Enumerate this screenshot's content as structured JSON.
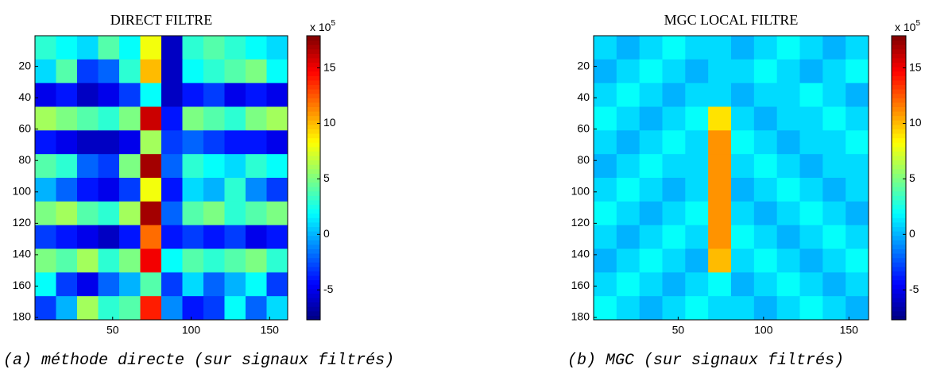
{
  "chart_data": [
    {
      "type": "heatmap",
      "title": "DIRECT FILTRE",
      "caption": "(a) méthode directe (sur signaux filtrés)",
      "xlim": [
        0.5,
        161.5
      ],
      "ylim": [
        0.5,
        181.5
      ],
      "xticks": [
        50,
        100,
        150
      ],
      "yticks": [
        20,
        40,
        60,
        80,
        100,
        120,
        140,
        160,
        180
      ],
      "clim": [
        -7.7,
        17.9
      ],
      "cticks": [
        -5,
        0,
        5,
        10,
        15
      ],
      "colorbar_label": "x 10",
      "colorbar_exponent": "5",
      "colormap": "jet",
      "z": [
        [
          3,
          2,
          1,
          4,
          2,
          8,
          -6,
          3,
          4,
          3,
          2,
          1
        ],
        [
          1,
          4,
          -3,
          -2,
          3,
          10,
          -6,
          2,
          3,
          4,
          5,
          2
        ],
        [
          -5,
          -4,
          -6,
          -5,
          -3,
          2,
          -6,
          -4,
          -3,
          -5,
          -4,
          -5
        ],
        [
          6,
          5,
          4,
          3,
          5,
          16,
          -4,
          5,
          4,
          3,
          5,
          6
        ],
        [
          -4,
          -5,
          -6,
          -6,
          -5,
          6,
          -3,
          -2,
          -3,
          -4,
          -4,
          -5
        ],
        [
          4,
          3,
          -2,
          -3,
          5,
          17,
          -2,
          3,
          2,
          1,
          3,
          2
        ],
        [
          0,
          -2,
          -4,
          -5,
          -3,
          8,
          -4,
          1,
          0,
          3,
          -1,
          -3
        ],
        [
          5,
          6,
          4,
          3,
          6,
          17,
          -2,
          4,
          5,
          3,
          4,
          5
        ],
        [
          -3,
          -4,
          -5,
          -6,
          -4,
          12,
          -4,
          -3,
          -4,
          -3,
          -5,
          -4
        ],
        [
          5,
          4,
          6,
          3,
          5,
          15,
          2,
          4,
          3,
          4,
          5,
          3
        ],
        [
          2,
          -3,
          -5,
          -2,
          0,
          4,
          -3,
          1,
          -2,
          0,
          2,
          -3
        ],
        [
          -3,
          0,
          6,
          3,
          4,
          14,
          -1,
          -4,
          -3,
          2,
          -2,
          1
        ]
      ]
    },
    {
      "type": "heatmap",
      "title": "MGC LOCAL FILTRE",
      "caption": "(b) MGC (sur signaux filtrés)",
      "xlim": [
        0.5,
        161.5
      ],
      "ylim": [
        0.5,
        181.5
      ],
      "xticks": [
        50,
        100,
        150
      ],
      "yticks": [
        20,
        40,
        60,
        80,
        100,
        120,
        140,
        160,
        180
      ],
      "clim": [
        -7.7,
        17.9
      ],
      "cticks": [
        -5,
        0,
        5,
        10,
        15
      ],
      "colorbar_label": "x 10",
      "colorbar_exponent": "5",
      "colormap": "jet",
      "z": [
        [
          1,
          0,
          1,
          2,
          1,
          1,
          0,
          1,
          2,
          1,
          0,
          1
        ],
        [
          0,
          1,
          2,
          1,
          0,
          1,
          1,
          2,
          1,
          0,
          1,
          2
        ],
        [
          1,
          2,
          1,
          0,
          1,
          1,
          0,
          1,
          1,
          2,
          1,
          0
        ],
        [
          2,
          1,
          0,
          1,
          2,
          9,
          1,
          0,
          1,
          1,
          2,
          1
        ],
        [
          1,
          0,
          1,
          2,
          1,
          11,
          2,
          1,
          0,
          1,
          1,
          2
        ],
        [
          0,
          1,
          2,
          1,
          1,
          11,
          1,
          2,
          1,
          0,
          1,
          1
        ],
        [
          1,
          2,
          1,
          0,
          1,
          11,
          0,
          1,
          2,
          1,
          0,
          1
        ],
        [
          2,
          1,
          0,
          1,
          2,
          11,
          1,
          0,
          1,
          2,
          1,
          0
        ],
        [
          1,
          0,
          1,
          2,
          1,
          11,
          2,
          1,
          0,
          1,
          2,
          1
        ],
        [
          0,
          1,
          2,
          1,
          0,
          10,
          1,
          2,
          1,
          0,
          1,
          2
        ],
        [
          1,
          2,
          1,
          0,
          1,
          2,
          0,
          1,
          2,
          1,
          0,
          1
        ],
        [
          2,
          1,
          0,
          1,
          2,
          1,
          1,
          0,
          1,
          2,
          1,
          0
        ]
      ]
    }
  ]
}
